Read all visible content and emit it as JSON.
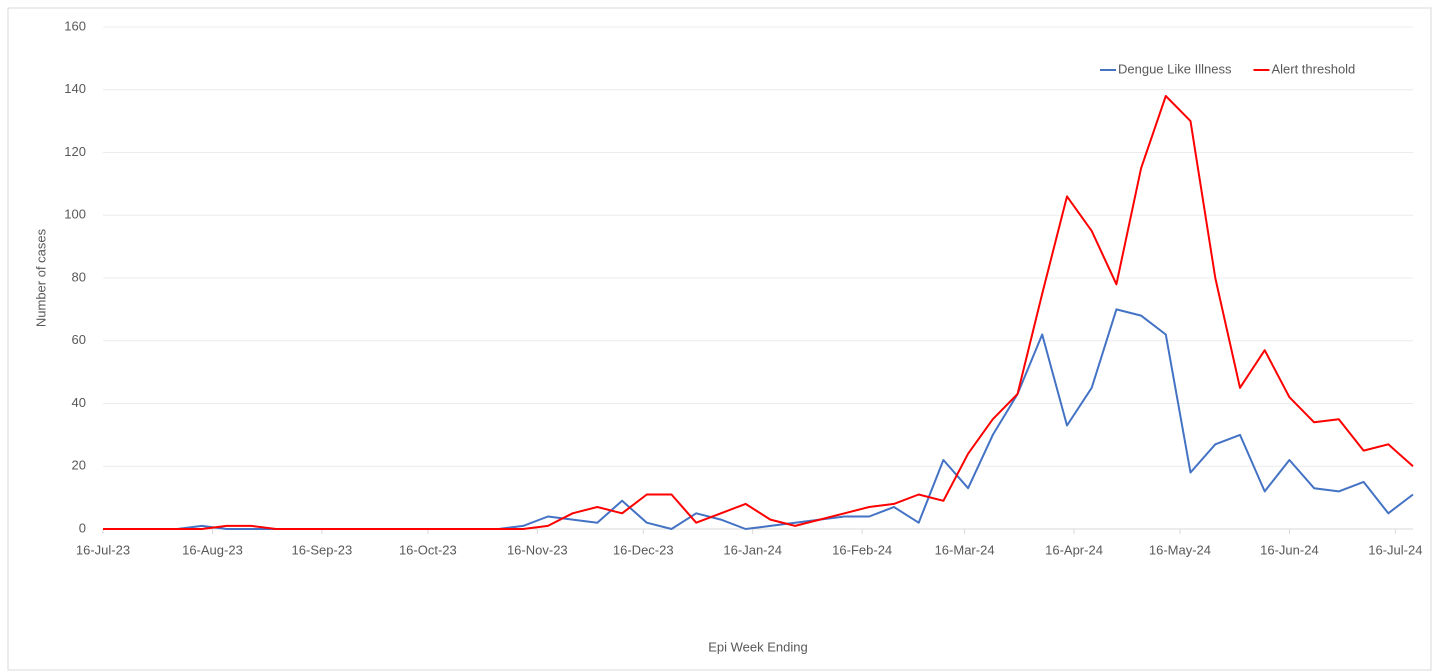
{
  "chart_data": {
    "type": "line",
    "x_label": "Epi Week Ending",
    "y_label": "Number of cases",
    "x": [
      "2023-07-16",
      "2023-07-23",
      "2023-07-30",
      "2023-08-06",
      "2023-08-13",
      "2023-08-20",
      "2023-08-27",
      "2023-09-03",
      "2023-09-10",
      "2023-09-17",
      "2023-09-24",
      "2023-10-01",
      "2023-10-08",
      "2023-10-15",
      "2023-10-22",
      "2023-10-29",
      "2023-11-05",
      "2023-11-12",
      "2023-11-19",
      "2023-11-26",
      "2023-12-03",
      "2023-12-10",
      "2023-12-17",
      "2023-12-24",
      "2023-12-31",
      "2024-01-07",
      "2024-01-14",
      "2024-01-21",
      "2024-01-28",
      "2024-02-04",
      "2024-02-11",
      "2024-02-18",
      "2024-02-25",
      "2024-03-03",
      "2024-03-10",
      "2024-03-17",
      "2024-03-24",
      "2024-03-31",
      "2024-04-07",
      "2024-04-14",
      "2024-04-21",
      "2024-04-28",
      "2024-05-05",
      "2024-05-12",
      "2024-05-19",
      "2024-05-26",
      "2024-06-02",
      "2024-06-09",
      "2024-06-16",
      "2024-06-23",
      "2024-06-30",
      "2024-07-07",
      "2024-07-14",
      "2024-07-21"
    ],
    "series": [
      {
        "name": "Dengue Like Illness",
        "color": "#4472c4",
        "values": [
          0,
          0,
          0,
          0,
          1,
          0,
          0,
          0,
          0,
          0,
          0,
          0,
          0,
          0,
          0,
          0,
          0,
          1,
          4,
          3,
          2,
          9,
          2,
          0,
          5,
          3,
          0,
          1,
          2,
          3,
          4,
          4,
          7,
          2,
          22,
          13,
          30,
          43,
          62,
          33,
          45,
          70,
          68,
          62,
          18,
          27,
          30,
          12,
          22,
          13,
          12,
          15,
          5,
          11
        ]
      },
      {
        "name": "Alert threshold",
        "color": "#ff0000",
        "values": [
          0,
          0,
          0,
          0,
          0,
          1,
          1,
          0,
          0,
          0,
          0,
          0,
          0,
          0,
          0,
          0,
          0,
          0,
          1,
          5,
          7,
          5,
          11,
          11,
          2,
          5,
          8,
          3,
          1,
          3,
          5,
          7,
          8,
          11,
          9,
          24,
          35,
          43,
          75,
          106,
          95,
          78,
          115,
          138,
          130,
          80,
          45,
          57,
          42,
          34,
          35,
          25,
          27,
          20
        ]
      }
    ],
    "xlim": [
      "2023-07-16",
      "2024-07-21"
    ],
    "xticks": [
      {
        "value": "2023-07-16",
        "label": "16-Jul-23"
      },
      {
        "value": "2023-08-16",
        "label": "16-Aug-23"
      },
      {
        "value": "2023-09-16",
        "label": "16-Sep-23"
      },
      {
        "value": "2023-10-16",
        "label": "16-Oct-23"
      },
      {
        "value": "2023-11-16",
        "label": "16-Nov-23"
      },
      {
        "value": "2023-12-16",
        "label": "16-Dec-23"
      },
      {
        "value": "2024-01-16",
        "label": "16-Jan-24"
      },
      {
        "value": "2024-02-16",
        "label": "16-Feb-24"
      },
      {
        "value": "2024-03-16",
        "label": "16-Mar-24"
      },
      {
        "value": "2024-04-16",
        "label": "16-Apr-24"
      },
      {
        "value": "2024-05-16",
        "label": "16-May-24"
      },
      {
        "value": "2024-06-16",
        "label": "16-Jun-24"
      },
      {
        "value": "2024-07-16",
        "label": "16-Jul-24"
      }
    ],
    "ylim": [
      0,
      160
    ],
    "yticks": [
      0,
      20,
      40,
      60,
      80,
      100,
      120,
      140,
      160
    ],
    "grid": true,
    "legend": "top-right"
  }
}
